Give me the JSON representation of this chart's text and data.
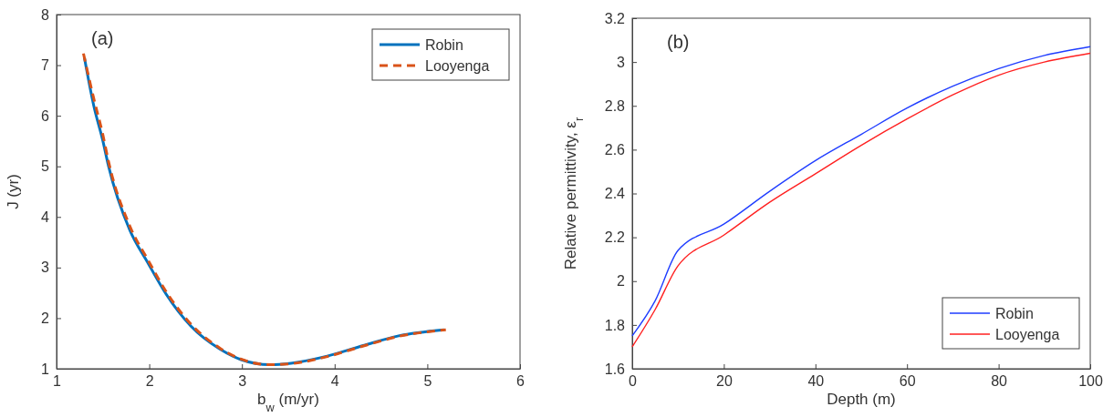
{
  "chart_data": [
    {
      "type": "line",
      "xlabel": "b$_{w}$ (m/yr)",
      "ylabel": "J (yr)",
      "annotations": [
        "(a)"
      ],
      "xlim": [
        1,
        6
      ],
      "xticks": [
        1,
        2,
        3,
        4,
        5,
        6
      ],
      "ylim": [
        1,
        8
      ],
      "yticks": [
        1,
        2,
        3,
        4,
        5,
        6,
        7,
        8
      ],
      "legend": "top right",
      "grid": false,
      "series": [
        {
          "name": "Robin",
          "color": "#0072bd",
          "line_style": "solid",
          "x": [
            1.3,
            1.4,
            1.5,
            1.56,
            1.79,
            1.98,
            2.18,
            2.45,
            2.76,
            2.99,
            3.3,
            3.53,
            3.92,
            4.31,
            4.69,
            5.18
          ],
          "values": [
            7.15,
            6.21,
            5.5,
            5.01,
            3.74,
            3.11,
            2.48,
            1.84,
            1.39,
            1.18,
            1.08,
            1.11,
            1.25,
            1.46,
            1.65,
            1.77
          ]
        },
        {
          "name": "Looyenga",
          "color": "#d95319",
          "line_style": "dashed",
          "x": [
            1.29,
            1.4,
            1.5,
            1.56,
            1.79,
            1.98,
            2.18,
            2.45,
            2.76,
            2.99,
            3.3,
            3.53,
            3.92,
            4.31,
            4.69,
            5.2
          ],
          "values": [
            7.23,
            6.35,
            5.62,
            5.1,
            3.82,
            3.17,
            2.53,
            1.88,
            1.41,
            1.19,
            1.08,
            1.1,
            1.24,
            1.45,
            1.64,
            1.77
          ]
        }
      ]
    },
    {
      "type": "line",
      "xlabel": "Depth (m)",
      "ylabel": "Relative permittivity, ε$_{r}$",
      "annotations": [
        "(b)"
      ],
      "xlim": [
        0,
        100
      ],
      "xticks": [
        0,
        20,
        40,
        60,
        80,
        100
      ],
      "ylim": [
        1.6,
        3.2
      ],
      "yticks": [
        1.6,
        1.8,
        2,
        2.2,
        2.4,
        2.6,
        2.8,
        3,
        3.2
      ],
      "legend": "bottom right",
      "grid": false,
      "series": [
        {
          "name": "Robin",
          "color": "#1f3dff",
          "line_style": "solid",
          "x": [
            0,
            5,
            10,
            20,
            30,
            40,
            50,
            60,
            70,
            80,
            90,
            100
          ],
          "values": [
            1.75,
            1.91,
            2.14,
            2.26,
            2.41,
            2.55,
            2.67,
            2.79,
            2.89,
            2.97,
            3.03,
            3.07
          ]
        },
        {
          "name": "Looyenga",
          "color": "#ff2020",
          "line_style": "solid",
          "x": [
            0,
            5,
            10,
            20,
            30,
            40,
            50,
            60,
            70,
            80,
            90,
            100
          ],
          "values": [
            1.7,
            1.87,
            2.07,
            2.21,
            2.36,
            2.49,
            2.62,
            2.74,
            2.85,
            2.94,
            3,
            3.04
          ]
        }
      ]
    }
  ]
}
